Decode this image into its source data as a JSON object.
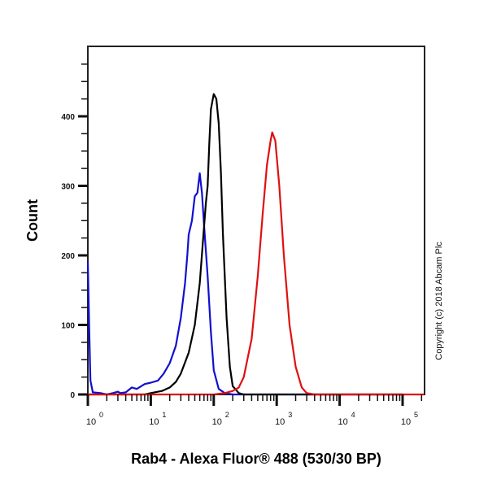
{
  "chart_data": {
    "type": "line",
    "subtype": "flow-cytometry-histogram",
    "title": "",
    "xlabel": "Rab4 - Alexa Fluor® 488 (530/30 BP)",
    "ylabel": "Count",
    "xscale": "log",
    "xlim": [
      1,
      250000
    ],
    "ylim": [
      0,
      500
    ],
    "grid": false,
    "legend": null,
    "x_ticks": [
      {
        "base": "10",
        "exp": "0",
        "value": 1
      },
      {
        "base": "10",
        "exp": "1",
        "value": 10
      },
      {
        "base": "10",
        "exp": "2",
        "value": 100
      },
      {
        "base": "10",
        "exp": "3",
        "value": 1000
      },
      {
        "base": "10",
        "exp": "4",
        "value": 10000
      },
      {
        "base": "10",
        "exp": "5",
        "value": 100000
      }
    ],
    "y_ticks": [
      "0",
      "100",
      "200",
      "300",
      "400"
    ],
    "y_tick_values": [
      0,
      100,
      200,
      300,
      400
    ],
    "annotations": [
      "Copyright (c) 2018 Abcam Plc"
    ],
    "series": [
      {
        "name": "blue",
        "color": "#1010d0",
        "peak_x": 60,
        "peak_y": 318,
        "points": [
          [
            1,
            190
          ],
          [
            1.05,
            100
          ],
          [
            1.1,
            20
          ],
          [
            1.2,
            3
          ],
          [
            1.6,
            2
          ],
          [
            2,
            0
          ],
          [
            2.5,
            2
          ],
          [
            3,
            4
          ],
          [
            3.3,
            2
          ],
          [
            4,
            3
          ],
          [
            5,
            10
          ],
          [
            6,
            8
          ],
          [
            8,
            15
          ],
          [
            10,
            17
          ],
          [
            13,
            20
          ],
          [
            16,
            30
          ],
          [
            20,
            45
          ],
          [
            25,
            70
          ],
          [
            30,
            110
          ],
          [
            35,
            160
          ],
          [
            38,
            200
          ],
          [
            40,
            230
          ],
          [
            45,
            250
          ],
          [
            50,
            285
          ],
          [
            55,
            290
          ],
          [
            60,
            318
          ],
          [
            65,
            290
          ],
          [
            70,
            245
          ],
          [
            80,
            170
          ],
          [
            90,
            90
          ],
          [
            100,
            35
          ],
          [
            120,
            8
          ],
          [
            150,
            2
          ],
          [
            200,
            0
          ],
          [
            100000,
            0
          ]
        ]
      },
      {
        "name": "black",
        "color": "#000000",
        "peak_x": 100,
        "peak_y": 432,
        "points": [
          [
            1,
            0
          ],
          [
            8,
            0
          ],
          [
            10,
            2
          ],
          [
            15,
            5
          ],
          [
            20,
            10
          ],
          [
            25,
            18
          ],
          [
            30,
            30
          ],
          [
            40,
            60
          ],
          [
            50,
            100
          ],
          [
            60,
            160
          ],
          [
            70,
            240
          ],
          [
            75,
            275
          ],
          [
            80,
            300
          ],
          [
            85,
            360
          ],
          [
            90,
            410
          ],
          [
            100,
            432
          ],
          [
            110,
            425
          ],
          [
            120,
            390
          ],
          [
            130,
            320
          ],
          [
            140,
            230
          ],
          [
            160,
            110
          ],
          [
            180,
            40
          ],
          [
            200,
            12
          ],
          [
            250,
            2
          ],
          [
            300,
            0
          ],
          [
            100000,
            0
          ]
        ]
      },
      {
        "name": "red",
        "color": "#e01010",
        "peak_x": 850,
        "peak_y": 377,
        "points": [
          [
            1,
            0
          ],
          [
            100,
            0
          ],
          [
            150,
            2
          ],
          [
            200,
            5
          ],
          [
            250,
            10
          ],
          [
            300,
            25
          ],
          [
            400,
            80
          ],
          [
            500,
            170
          ],
          [
            600,
            260
          ],
          [
            700,
            330
          ],
          [
            800,
            365
          ],
          [
            850,
            377
          ],
          [
            950,
            365
          ],
          [
            1100,
            300
          ],
          [
            1300,
            200
          ],
          [
            1600,
            100
          ],
          [
            2000,
            40
          ],
          [
            2500,
            10
          ],
          [
            3000,
            2
          ],
          [
            4000,
            0
          ],
          [
            250000,
            0
          ]
        ]
      }
    ]
  },
  "copyright": "Copyright (c) 2018 Abcam Plc"
}
